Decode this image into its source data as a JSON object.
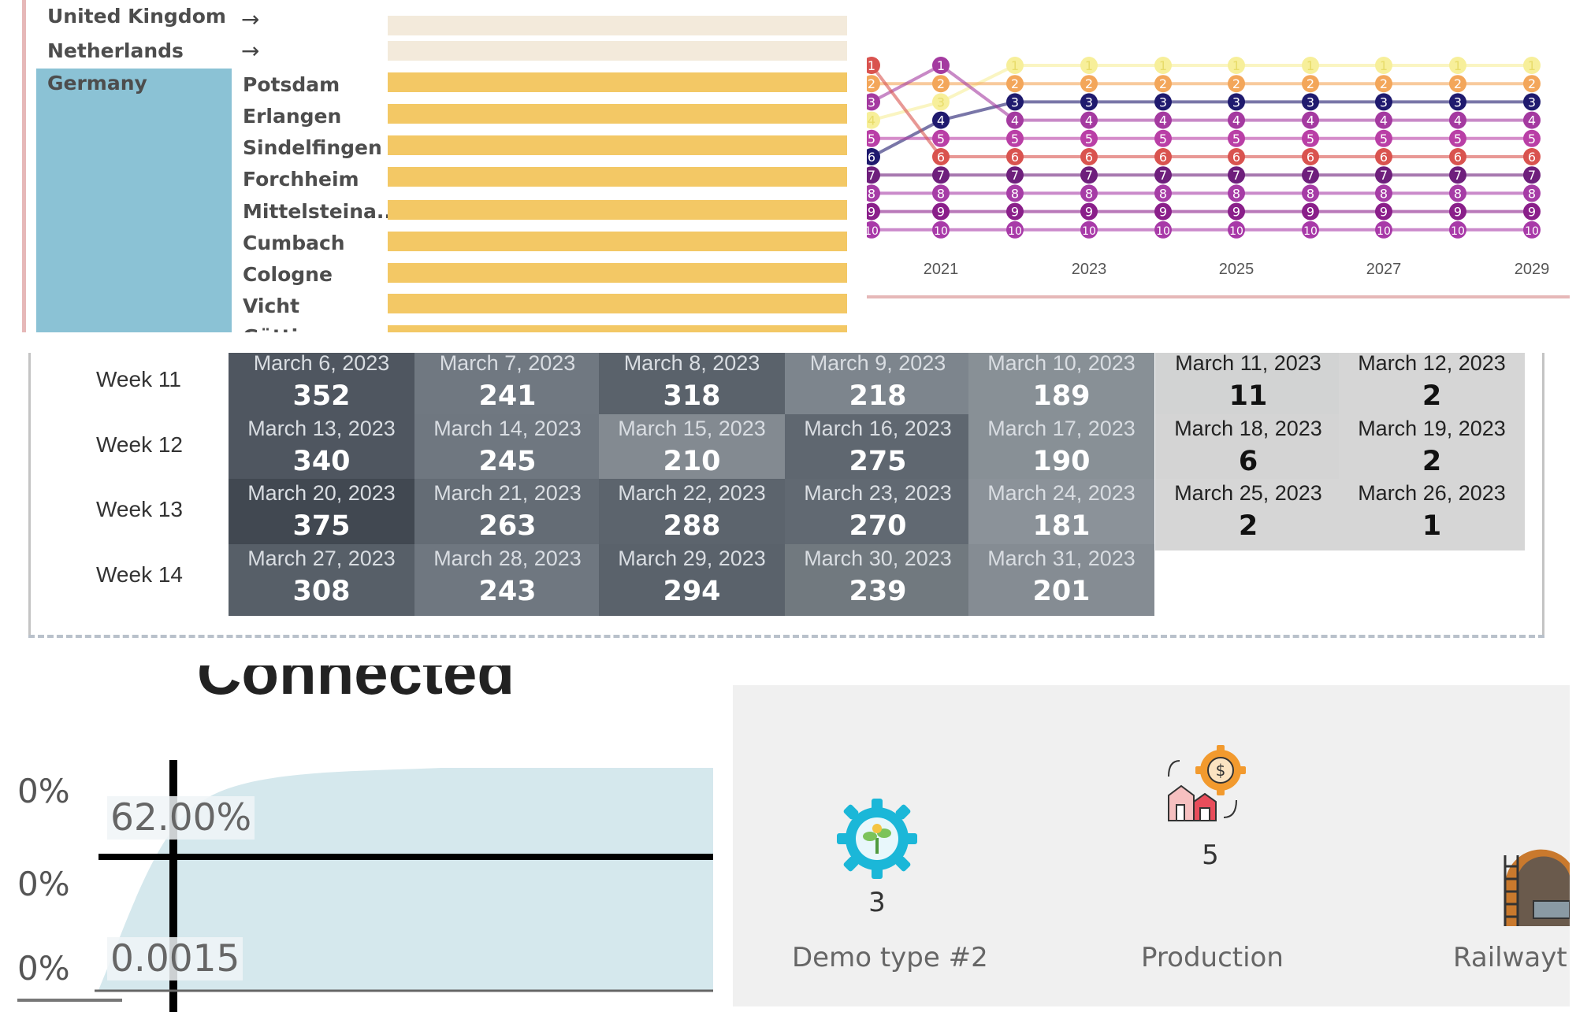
{
  "country_panel": {
    "rows": [
      {
        "country": "United Kingdom",
        "city": "",
        "collapsed": true,
        "arrow": "→"
      },
      {
        "country": "Netherlands",
        "city": "",
        "collapsed": true,
        "arrow": "→"
      },
      {
        "country": "Germany",
        "city": "Potsdam"
      },
      {
        "country": "",
        "city": "Erlangen"
      },
      {
        "country": "",
        "city": "Sindelfingen"
      },
      {
        "country": "",
        "city": "Forchheim"
      },
      {
        "country": "",
        "city": "Mittelsteina.."
      },
      {
        "country": "",
        "city": "Cumbach"
      },
      {
        "country": "",
        "city": "Cologne"
      },
      {
        "country": "",
        "city": "Vicht"
      },
      {
        "country": "",
        "city": "Göttingen"
      }
    ],
    "colors": {
      "selected": "#8bc2d5",
      "bar": "#f3c865",
      "bar_faint": "#f3eadb"
    }
  },
  "bump_chart": {
    "x_ticks": [
      "2021",
      "2023",
      "2025",
      "2027",
      "2029"
    ],
    "ranks": [
      "1",
      "2",
      "3",
      "4",
      "5",
      "6",
      "7",
      "8",
      "9",
      "10"
    ],
    "rank_colors": [
      "#f7ef9a",
      "#f3a65a",
      "#1f1a6e",
      "#a43aa0",
      "#b93fa6",
      "#d9534f",
      "#6e1f7c",
      "#a63ca6",
      "#8a1f8a",
      "#a83aa8"
    ]
  },
  "calendar": {
    "weeks": [
      {
        "label": "Week 11",
        "days": [
          {
            "date": "March 6, 2023",
            "value": "352",
            "shade": "#4f5660"
          },
          {
            "date": "March 7, 2023",
            "value": "241",
            "shade": "#707881"
          },
          {
            "date": "March 8, 2023",
            "value": "318",
            "shade": "#5a626b"
          },
          {
            "date": "March 9, 2023",
            "value": "218",
            "shade": "#7d858d"
          },
          {
            "date": "March 10, 2023",
            "value": "189",
            "shade": "#889096"
          },
          {
            "date": "March 11, 2023",
            "value": "11",
            "shade": "#d2d3d3"
          },
          {
            "date": "March 12, 2023",
            "value": "2",
            "shade": "#d6d6d6"
          }
        ]
      },
      {
        "label": "Week 12",
        "days": [
          {
            "date": "March 13, 2023",
            "value": "340",
            "shade": "#4f5660"
          },
          {
            "date": "March 14, 2023",
            "value": "245",
            "shade": "#6f7780"
          },
          {
            "date": "March 15, 2023",
            "value": "210",
            "shade": "#838a91"
          },
          {
            "date": "March 16, 2023",
            "value": "275",
            "shade": "#5f6770"
          },
          {
            "date": "March 17, 2023",
            "value": "190",
            "shade": "#889096"
          },
          {
            "date": "March 18, 2023",
            "value": "6",
            "shade": "#d4d4d4"
          },
          {
            "date": "March 19, 2023",
            "value": "2",
            "shade": "#d6d6d6"
          }
        ]
      },
      {
        "label": "Week 13",
        "days": [
          {
            "date": "March 20, 2023",
            "value": "375",
            "shade": "#414851"
          },
          {
            "date": "March 21, 2023",
            "value": "263",
            "shade": "#646c75"
          },
          {
            "date": "March 22, 2023",
            "value": "288",
            "shade": "#5c646d"
          },
          {
            "date": "March 23, 2023",
            "value": "270",
            "shade": "#616972"
          },
          {
            "date": "March 24, 2023",
            "value": "181",
            "shade": "#8b9299"
          },
          {
            "date": "March 25, 2023",
            "value": "2",
            "shade": "#d6d6d6"
          },
          {
            "date": "March 26, 2023",
            "value": "1",
            "shade": "#d6d6d6"
          }
        ]
      },
      {
        "label": "Week 14",
        "days": [
          {
            "date": "March 27, 2023",
            "value": "308",
            "shade": "#575f68"
          },
          {
            "date": "March 28, 2023",
            "value": "243",
            "shade": "#6f7780"
          },
          {
            "date": "March 29, 2023",
            "value": "294",
            "shade": "#5a626b"
          },
          {
            "date": "March 30, 2023",
            "value": "239",
            "shade": "#71797f"
          },
          {
            "date": "March 31, 2023",
            "value": "201",
            "shade": "#858c93"
          }
        ]
      }
    ]
  },
  "cumulative_chart": {
    "title": "Connected",
    "y_ticks": [
      "0%",
      "0%",
      "0%"
    ],
    "crosshair_y": "62.00%",
    "crosshair_x": "0.0015",
    "fill_color": "#d5e8ed"
  },
  "kpi_tiles": [
    {
      "label": "Demo type #2",
      "value": "3",
      "icon": "gear-plant-icon"
    },
    {
      "label": "Production",
      "value": "5",
      "icon": "factory-money-gear-icon"
    },
    {
      "label": "Railwayt",
      "value": "",
      "icon": "railway-tunnel-icon"
    }
  ]
}
